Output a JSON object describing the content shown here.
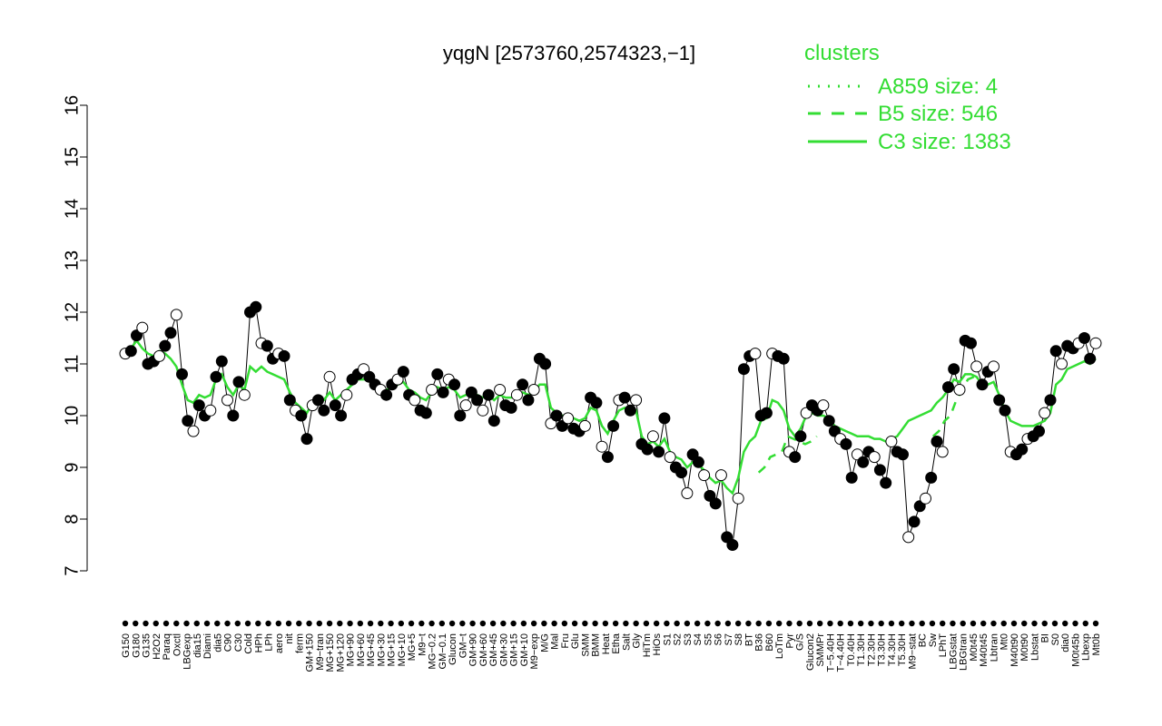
{
  "chart_data": {
    "type": "line",
    "title": "yqgN [2573760,2574323,−1]",
    "xlabel": "",
    "ylabel": "",
    "ylim": [
      7,
      16
    ],
    "yticks": [
      7,
      8,
      9,
      10,
      11,
      12,
      13,
      14,
      15,
      16
    ],
    "legend": {
      "title": "clusters",
      "placement": "top-right",
      "color": "#33dd33",
      "entries": [
        {
          "label": "A859 size: 4",
          "style": "dotted"
        },
        {
          "label": "B5 size: 546",
          "style": "dashed"
        },
        {
          "label": "C3 size: 1383",
          "style": "solid"
        }
      ]
    },
    "x_tick_labels": [
      "G150",
      "G180",
      "G135",
      "H2O2",
      "Paraq",
      "Oxctl",
      "LBGexp",
      "dia15",
      "Diami",
      "dia5",
      "C90",
      "C30",
      "Cold",
      "HPh",
      "LPh",
      "aero",
      "nit",
      "ferm",
      "GM+150",
      "M9−tran",
      "MG+150",
      "MG+120",
      "MG+90",
      "MG+60",
      "MG+45",
      "MG+30",
      "MG+15",
      "MG+10",
      "MG+5",
      "M9−t",
      "MG−0.2",
      "GM−0.1",
      "Glucon",
      "GM−t",
      "GM+90",
      "GM+60",
      "GM+45",
      "GM+30",
      "GM+15",
      "GM+10",
      "M9−exp",
      "M/G",
      "Mal",
      "Fru",
      "Glu",
      "SMM",
      "BMM",
      "Heat",
      "Etha",
      "Salt",
      "Gly",
      "HiTm",
      "HiOs",
      "S1",
      "S2",
      "S3",
      "S4",
      "S5",
      "S6",
      "S7",
      "S8",
      "BT",
      "B36",
      "B60",
      "LoTm",
      "Pyr",
      "G/S",
      "Glucon2",
      "SMMPr",
      "T−5.40H",
      "T−4.40H",
      "T0.40H",
      "T1.30H",
      "T2.30H",
      "T3.30H",
      "T4.30H",
      "T5.30H",
      "M9−stat",
      "BC",
      "Sw",
      "LPhT",
      "LBGstat",
      "LBGtran",
      "M0t45",
      "M40t45",
      "Lbtran",
      "Mt0",
      "M40t90",
      "M0t90",
      "Lbstat",
      "BI",
      "S0",
      "dia0",
      "M0t45b",
      "Lbexp",
      "Mt0b"
    ],
    "series": [
      {
        "name": "",
        "style": "points",
        "color": "#000000",
        "values": [
          11.2,
          11.25,
          11.55,
          11.7,
          11.0,
          11.05,
          11.15,
          11.35,
          11.6,
          11.95,
          10.8,
          9.9,
          9.7,
          10.2,
          10.0,
          10.1,
          10.75,
          11.05,
          10.3,
          10.0,
          10.65,
          10.4,
          12.0,
          12.1,
          11.4,
          11.35,
          11.1,
          11.2,
          11.15,
          10.3,
          10.1,
          10.0,
          9.55,
          10.2,
          10.3,
          10.1,
          10.75,
          10.2,
          10.0,
          10.4,
          10.7,
          10.8,
          10.9,
          10.75,
          10.6,
          10.5,
          10.4,
          10.6,
          10.7,
          10.85,
          10.4,
          10.3,
          10.1,
          10.05,
          10.5,
          10.8,
          10.45,
          10.7,
          10.6,
          10.0,
          10.2,
          10.45,
          10.3,
          10.1,
          10.4,
          9.9,
          10.5,
          10.2,
          10.15,
          10.4,
          10.6,
          10.3,
          10.5,
          11.1,
          11.0,
          9.85,
          10.0,
          9.8,
          9.95,
          9.75,
          9.7,
          9.8,
          10.35,
          10.25,
          9.4,
          9.2,
          9.8,
          10.3,
          10.35,
          10.1,
          10.3,
          9.45,
          9.35,
          9.6,
          9.3,
          9.95,
          9.2,
          9.0,
          8.9,
          8.5,
          9.25,
          9.1,
          8.85,
          8.45,
          8.3,
          8.85,
          7.65,
          7.5,
          8.4,
          10.9,
          11.15,
          11.2,
          10.0,
          10.05,
          11.2,
          11.15,
          11.1,
          9.3,
          9.2,
          9.6,
          10.05,
          10.2,
          10.1,
          10.2,
          9.9,
          9.7,
          9.55,
          9.45,
          8.8,
          9.25,
          9.1,
          9.3,
          9.2,
          8.95,
          8.7,
          9.5,
          9.3,
          9.25,
          7.65,
          7.95,
          8.25,
          8.4,
          8.8,
          9.5,
          9.3,
          10.55,
          10.9,
          10.5,
          11.45,
          11.4,
          10.95,
          10.6,
          10.85,
          10.95,
          10.3,
          10.1,
          9.3,
          9.25,
          9.35,
          9.55,
          9.6,
          9.7,
          10.05,
          10.3,
          11.25,
          11.0,
          11.35,
          11.3,
          11.4,
          11.5,
          11.1,
          11.4
        ]
      },
      {
        "name": "",
        "style": "solid",
        "color": "#33dd33",
        "values": [
          11.15,
          11.3,
          11.45,
          11.3,
          11.2,
          11.15,
          11.25,
          11.2,
          11.1,
          10.95,
          10.6,
          10.3,
          10.25,
          10.4,
          10.35,
          10.4,
          10.7,
          10.8,
          10.55,
          10.4,
          10.6,
          10.5,
          10.95,
          10.85,
          10.95,
          10.85,
          10.8,
          10.75,
          10.7,
          10.45,
          10.25,
          10.15,
          10.05,
          10.25,
          10.3,
          10.3,
          10.45,
          10.3,
          10.4,
          10.5,
          10.6,
          10.7,
          10.7,
          10.7,
          10.6,
          10.55,
          10.5,
          10.55,
          10.6,
          10.65,
          10.5,
          10.45,
          10.35,
          10.3,
          10.45,
          10.55,
          10.5,
          10.55,
          10.5,
          10.35,
          10.4,
          10.45,
          10.4,
          10.35,
          10.4,
          10.3,
          10.4,
          10.35,
          10.35,
          10.4,
          10.45,
          10.4,
          10.45,
          10.6,
          10.6,
          10.15,
          10.05,
          10.0,
          10.0,
          9.95,
          9.9,
          9.95,
          10.15,
          10.1,
          9.8,
          9.65,
          9.9,
          10.1,
          10.15,
          10.05,
          10.1,
          9.6,
          9.45,
          9.5,
          9.4,
          9.55,
          9.3,
          9.2,
          9.15,
          9.0,
          9.1,
          9.05,
          8.95,
          8.8,
          8.7,
          8.75,
          8.6,
          8.5,
          8.8,
          9.3,
          9.5,
          9.6,
          9.9,
          9.95,
          10.3,
          10.25,
          10.1,
          9.75,
          9.6,
          9.75,
          10.0,
          10.05,
          10.0,
          10.0,
          9.95,
          9.8,
          9.75,
          9.7,
          9.65,
          9.6,
          9.6,
          9.6,
          9.55,
          9.55,
          9.5,
          9.55,
          9.6,
          9.75,
          9.9,
          9.95,
          10.0,
          10.05,
          10.1,
          10.25,
          10.35,
          10.5,
          10.7,
          10.65,
          10.8,
          10.8,
          10.75,
          10.6,
          10.6,
          10.65,
          10.4,
          10.1,
          9.9,
          9.85,
          9.8,
          9.8,
          9.8,
          9.85,
          9.9,
          10.05,
          10.6,
          10.7,
          10.9,
          10.95,
          11.0,
          11.05,
          11.0,
          11.1
        ]
      },
      {
        "name": "",
        "style": "dashed",
        "color": "#33dd33",
        "segments_note": "",
        "values": [
          null,
          null,
          null,
          null,
          null,
          null,
          null,
          null,
          null,
          null,
          null,
          null,
          null,
          null,
          null,
          null,
          null,
          null,
          null,
          null,
          null,
          null,
          null,
          null,
          null,
          null,
          null,
          null,
          null,
          null,
          null,
          null,
          null,
          null,
          null,
          null,
          null,
          null,
          null,
          null,
          null,
          null,
          null,
          null,
          null,
          null,
          null,
          null,
          null,
          null,
          null,
          null,
          null,
          null,
          null,
          null,
          null,
          null,
          null,
          null,
          null,
          null,
          null,
          null,
          null,
          null,
          null,
          null,
          null,
          null,
          null,
          null,
          null,
          null,
          null,
          null,
          null,
          null,
          null,
          null,
          null,
          null,
          null,
          null,
          null,
          null,
          null,
          null,
          null,
          null,
          null,
          null,
          null,
          null,
          null,
          null,
          null,
          null,
          null,
          null,
          null,
          null,
          null,
          null,
          null,
          null,
          null,
          null,
          null,
          8.9,
          9.0,
          9.2,
          9.25,
          9.3,
          9.6,
          9.55,
          9.5,
          9.45,
          9.5,
          9.6,
          null,
          null,
          null,
          null,
          null,
          null,
          null,
          null,
          null,
          null,
          null,
          null,
          null,
          null,
          null,
          null,
          null,
          null,
          null,
          9.6,
          9.7,
          9.9,
          10.0,
          10.3,
          10.5,
          10.7,
          10.75,
          10.6,
          10.55,
          null,
          null,
          null,
          null,
          null,
          null,
          null,
          null,
          null,
          null,
          null,
          null,
          null,
          null,
          null,
          null,
          null,
          null,
          null
        ]
      }
    ]
  }
}
